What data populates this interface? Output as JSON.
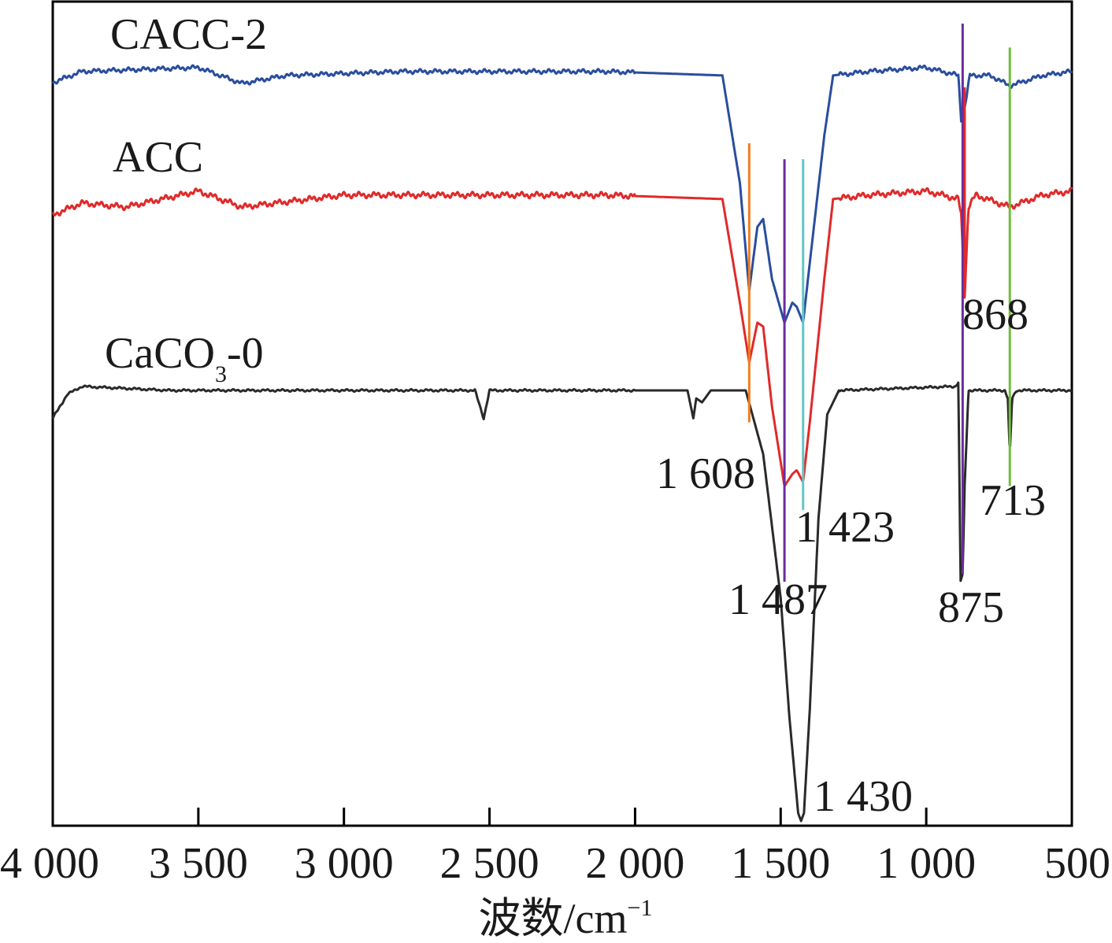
{
  "chart_data": {
    "type": "line",
    "title": "",
    "xlabel": "波数/cm",
    "xlabel_sup": "−1",
    "ylabel": "",
    "xlim": [
      4000,
      500
    ],
    "x_reversed": true,
    "x_ticks": [
      4000,
      3500,
      3000,
      2500,
      2000,
      1500,
      1000,
      500
    ],
    "x_tick_labels": [
      "4 000",
      "3 500",
      "3 000",
      "2 500",
      "2 000",
      "1 500",
      "1 000",
      "500"
    ],
    "grid": false,
    "legend": "none (series labelled inline)",
    "colors": {
      "CACC-2": "#2a4d9e",
      "ACC": "#e02a2a",
      "CaCO3-0": "#2a2a2a",
      "line_1608": "#f07d21",
      "line_1487": "#6a2c9c",
      "line_1423": "#62c5c5",
      "line_875": "#6a2c9c",
      "line_868": "#e02a2a",
      "line_713": "#74bd3c"
    },
    "series": [
      {
        "name": "CACC-2",
        "name_main": "CACC-2",
        "baseline": 0.94,
        "points": [
          [
            4000,
            0.926
          ],
          [
            3900,
            0.94
          ],
          [
            3500,
            0.945
          ],
          [
            3350,
            0.925
          ],
          [
            3200,
            0.935
          ],
          [
            2800,
            0.94
          ],
          [
            2100,
            0.94
          ],
          [
            1700,
            0.935
          ],
          [
            1640,
            0.8
          ],
          [
            1608,
            0.665
          ],
          [
            1580,
            0.745
          ],
          [
            1560,
            0.755
          ],
          [
            1530,
            0.68
          ],
          [
            1487,
            0.625
          ],
          [
            1460,
            0.65
          ],
          [
            1445,
            0.645
          ],
          [
            1423,
            0.625
          ],
          [
            1400,
            0.7
          ],
          [
            1350,
            0.86
          ],
          [
            1320,
            0.935
          ],
          [
            1200,
            0.94
          ],
          [
            1000,
            0.945
          ],
          [
            890,
            0.935
          ],
          [
            880,
            0.88
          ],
          [
            868,
            0.895
          ],
          [
            850,
            0.935
          ],
          [
            780,
            0.935
          ],
          [
            713,
            0.922
          ],
          [
            600,
            0.935
          ],
          [
            500,
            0.94
          ]
        ]
      },
      {
        "name": "ACC",
        "name_main": "ACC",
        "baseline": 0.785,
        "points": [
          [
            4000,
            0.76
          ],
          [
            3900,
            0.775
          ],
          [
            3750,
            0.77
          ],
          [
            3500,
            0.79
          ],
          [
            3350,
            0.77
          ],
          [
            3000,
            0.785
          ],
          [
            2100,
            0.785
          ],
          [
            1700,
            0.78
          ],
          [
            1640,
            0.65
          ],
          [
            1608,
            0.575
          ],
          [
            1580,
            0.625
          ],
          [
            1560,
            0.62
          ],
          [
            1530,
            0.52
          ],
          [
            1487,
            0.42
          ],
          [
            1460,
            0.435
          ],
          [
            1445,
            0.44
          ],
          [
            1423,
            0.425
          ],
          [
            1400,
            0.5
          ],
          [
            1350,
            0.68
          ],
          [
            1320,
            0.78
          ],
          [
            1200,
            0.785
          ],
          [
            1000,
            0.79
          ],
          [
            890,
            0.78
          ],
          [
            880,
            0.76
          ],
          [
            868,
            0.66
          ],
          [
            855,
            0.77
          ],
          [
            830,
            0.785
          ],
          [
            713,
            0.77
          ],
          [
            600,
            0.785
          ],
          [
            500,
            0.79
          ]
        ]
      },
      {
        "name": "CaCO3-0",
        "name_main": "CaCO",
        "name_sub": "3",
        "name_tail": "-0",
        "baseline": 0.54,
        "points": [
          [
            4000,
            0.505
          ],
          [
            3950,
            0.535
          ],
          [
            3900,
            0.545
          ],
          [
            3600,
            0.54
          ],
          [
            3000,
            0.54
          ],
          [
            2550,
            0.54
          ],
          [
            2520,
            0.505
          ],
          [
            2500,
            0.54
          ],
          [
            1820,
            0.54
          ],
          [
            1800,
            0.505
          ],
          [
            1790,
            0.53
          ],
          [
            1770,
            0.525
          ],
          [
            1740,
            0.54
          ],
          [
            1620,
            0.54
          ],
          [
            1560,
            0.46
          ],
          [
            1500,
            0.28
          ],
          [
            1470,
            0.13
          ],
          [
            1440,
            0.01
          ],
          [
            1430,
            0.0
          ],
          [
            1420,
            0.01
          ],
          [
            1400,
            0.14
          ],
          [
            1370,
            0.38
          ],
          [
            1340,
            0.51
          ],
          [
            1300,
            0.54
          ],
          [
            900,
            0.545
          ],
          [
            890,
            0.55
          ],
          [
            882,
            0.3
          ],
          [
            875,
            0.31
          ],
          [
            868,
            0.42
          ],
          [
            855,
            0.54
          ],
          [
            730,
            0.54
          ],
          [
            720,
            0.53
          ],
          [
            713,
            0.46
          ],
          [
            705,
            0.53
          ],
          [
            690,
            0.54
          ],
          [
            600,
            0.54
          ],
          [
            500,
            0.54
          ]
        ]
      }
    ],
    "marker_lines": [
      {
        "wavenumber": 1608,
        "label": "1 608",
        "color_key": "line_1608",
        "y_from": 0.5,
        "y_to": 0.85
      },
      {
        "wavenumber": 1487,
        "label": "1 487",
        "color_key": "line_1487",
        "y_from": 0.3,
        "y_to": 0.83
      },
      {
        "wavenumber": 1423,
        "label": "1 423",
        "color_key": "line_1423",
        "y_from": 0.39,
        "y_to": 0.83
      },
      {
        "wavenumber": 875,
        "label": "875",
        "color_key": "line_875",
        "y_from": 0.31,
        "y_to": 1.0
      },
      {
        "wavenumber": 868,
        "label": "868",
        "color_key": "line_868",
        "y_from": 0.66,
        "y_to": 0.92
      },
      {
        "wavenumber": 713,
        "label": "713",
        "color_key": "line_713",
        "y_from": 0.42,
        "y_to": 0.97
      }
    ],
    "annotations": [
      {
        "text": "1 430",
        "wavenumber": 1430
      }
    ]
  }
}
